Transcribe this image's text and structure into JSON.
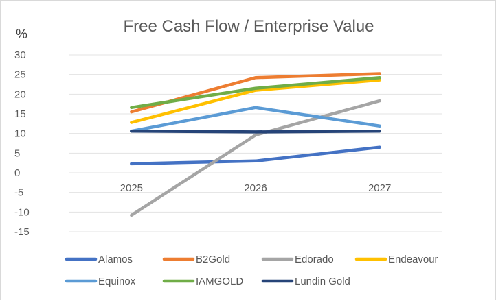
{
  "chart_data": {
    "type": "line",
    "title": "Free Cash Flow / Enterprise Value",
    "ylabel": "%",
    "xlabel": "",
    "categories": [
      "2025",
      "2026",
      "2027"
    ],
    "ylim": [
      -15,
      30
    ],
    "ytick_step": 5,
    "y_ticks": [
      "30",
      "25",
      "20",
      "15",
      "10",
      "5",
      "0",
      "-5",
      "-10",
      "-15"
    ],
    "grid": true,
    "legend": "bottom",
    "series": [
      {
        "name": "Alamos",
        "color": "#4472c4",
        "values": [
          2.3,
          3.0,
          6.5
        ]
      },
      {
        "name": "B2Gold",
        "color": "#ed7d31",
        "values": [
          15.5,
          24.2,
          25.2
        ]
      },
      {
        "name": "Edorado",
        "color": "#a5a5a5",
        "values": [
          -10.8,
          9.6,
          18.3
        ]
      },
      {
        "name": "Endeavour",
        "color": "#ffc000",
        "values": [
          12.8,
          21.0,
          23.6
        ]
      },
      {
        "name": "Equinox",
        "color": "#5b9bd5",
        "values": [
          10.6,
          16.6,
          11.9
        ]
      },
      {
        "name": "IAMGOLD",
        "color": "#70ad47",
        "values": [
          16.6,
          21.5,
          24.2
        ]
      },
      {
        "name": "Lundin Gold",
        "color": "#264478",
        "values": [
          10.6,
          10.4,
          10.6
        ]
      }
    ]
  }
}
